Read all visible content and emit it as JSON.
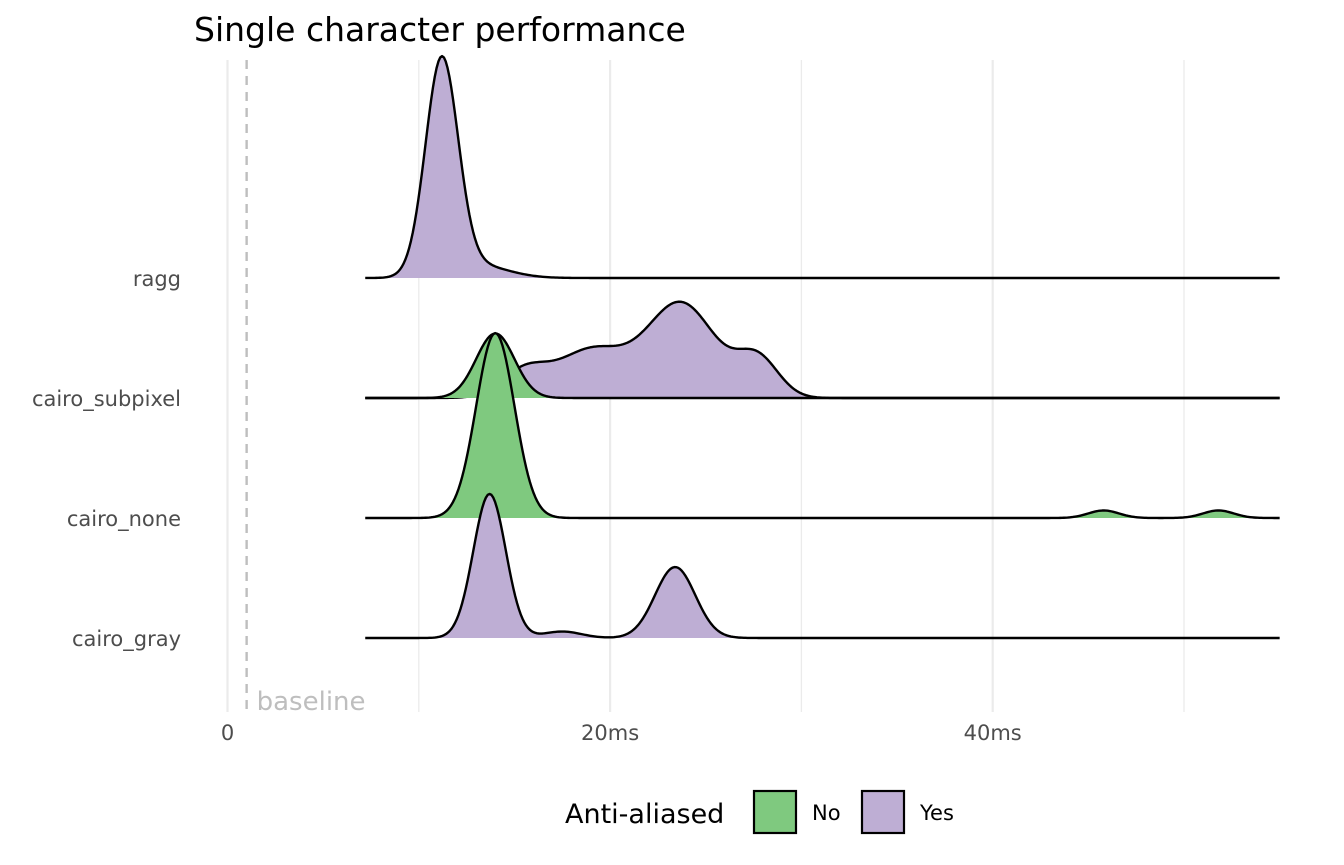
{
  "chart_data": {
    "type": "ridgeline",
    "title": "Single character performance",
    "xlabel": "",
    "ylabel": "",
    "x_unit": "ms",
    "xlim": [
      0,
      55
    ],
    "x_ticks": [
      {
        "value": 0,
        "label": "0"
      },
      {
        "value": 20,
        "label": "20ms"
      },
      {
        "value": 40,
        "label": "40ms"
      }
    ],
    "x_minor_gridlines": [
      10,
      30,
      50
    ],
    "grid": true,
    "categories": [
      "ragg",
      "cairo_subpixel",
      "cairo_none",
      "cairo_gray"
    ],
    "annotations": [
      {
        "type": "vline",
        "x": 1.0,
        "style": "dashed",
        "color": "#bebebe",
        "label": "baseline"
      }
    ],
    "legend": {
      "title": "Anti-aliased",
      "position": "bottom",
      "entries": [
        {
          "label": "No",
          "color": "#7fc97f"
        },
        {
          "label": "Yes",
          "color": "#beaed4"
        }
      ]
    },
    "density_x_range": [
      7.2,
      55
    ],
    "series": [
      {
        "category": "ragg",
        "anti_aliased": "Yes",
        "peaks": [
          {
            "x": 11.2,
            "height": 1.0,
            "sd": 0.85
          },
          {
            "x": 13.0,
            "height": 0.06,
            "sd": 1.6
          }
        ]
      },
      {
        "category": "cairo_subpixel",
        "anti_aliased": "Yes",
        "peaks": [
          {
            "x": 15.5,
            "height": 0.12,
            "sd": 1.2
          },
          {
            "x": 19.0,
            "height": 0.22,
            "sd": 1.8
          },
          {
            "x": 23.7,
            "height": 0.44,
            "sd": 1.8
          },
          {
            "x": 27.7,
            "height": 0.18,
            "sd": 1.1
          }
        ]
      },
      {
        "category": "cairo_subpixel",
        "anti_aliased": "No",
        "peaks": [
          {
            "x": 14.0,
            "height": 0.3,
            "sd": 1.0
          }
        ]
      },
      {
        "category": "cairo_none",
        "anti_aliased": "No",
        "peaks": [
          {
            "x": 14.0,
            "height": 0.86,
            "sd": 1.0
          },
          {
            "x": 45.8,
            "height": 0.035,
            "sd": 0.8
          },
          {
            "x": 51.8,
            "height": 0.035,
            "sd": 0.8
          }
        ]
      },
      {
        "category": "cairo_gray",
        "anti_aliased": "Yes",
        "peaks": [
          {
            "x": 13.7,
            "height": 0.67,
            "sd": 0.85
          },
          {
            "x": 17.5,
            "height": 0.03,
            "sd": 1.0
          },
          {
            "x": 23.4,
            "height": 0.33,
            "sd": 1.05
          }
        ]
      }
    ]
  }
}
